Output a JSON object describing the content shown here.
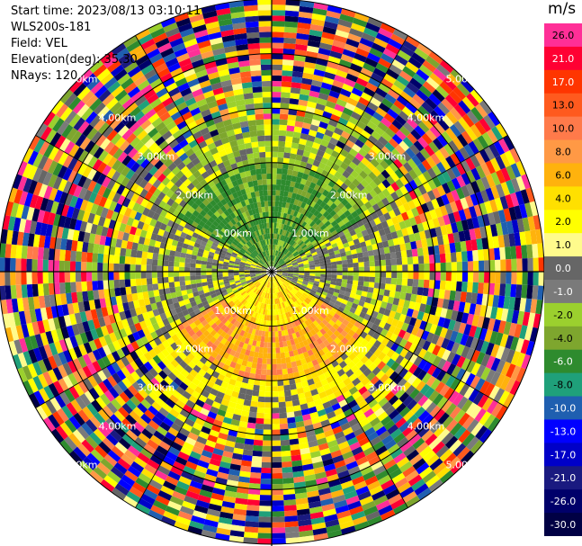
{
  "info": {
    "start_time": "Start time: 2023/08/13 03:10:11",
    "instrument": "WLS200s-181",
    "field": "Field: VEL",
    "elevation": "Elevation(deg): 35.30",
    "nrays": "NRays: 120"
  },
  "colorbar": {
    "unit": "m/s",
    "ticks": [
      "26.0",
      "21.0",
      "17.0",
      "13.0",
      "10.0",
      "8.0",
      "6.0",
      "4.0",
      "2.0",
      "1.0",
      "0.0",
      "-1.0",
      "-2.0",
      "-4.0",
      "-6.0",
      "-8.0",
      "-10.0",
      "-13.0",
      "-17.0",
      "-21.0",
      "-26.0",
      "-30.0"
    ],
    "colors": [
      "#ff2f97",
      "#ff0033",
      "#ff3500",
      "#ff5a1e",
      "#ff7a4a",
      "#ff9945",
      "#ffb20d",
      "#ffe000",
      "#ffff00",
      "#fffb8c",
      "#666666",
      "#7a7a7a",
      "#9bd02e",
      "#7ea62e",
      "#2e8b2e",
      "#1fa07a",
      "#1f5fb0",
      "#0000ff",
      "#0000c8",
      "#1a1a80",
      "#00006a",
      "#000044"
    ]
  },
  "chart_data": {
    "type": "heatmap",
    "title": "",
    "field": "VEL",
    "units": "m/s",
    "scan": "PPI",
    "elevation_deg": 35.3,
    "n_rays": 120,
    "range_rings_km": [
      1,
      2,
      3,
      4,
      5
    ],
    "ring_labels": [
      "1.00km",
      "2.00km",
      "3.00km",
      "4.00km",
      "5.00km"
    ],
    "value_range": [
      -30,
      26
    ],
    "regions": [
      {
        "name": "northern sector, within 2 km",
        "dominant_values": [
          -6,
          -2
        ]
      },
      {
        "name": "southern sector, within 2 km",
        "dominant_values": [
          4,
          10
        ]
      },
      {
        "name": "east/west flanks",
        "dominant_values": [
          -1,
          0
        ]
      },
      {
        "name": "beyond 3 km",
        "dominant_values": "noise across full scale"
      }
    ]
  }
}
